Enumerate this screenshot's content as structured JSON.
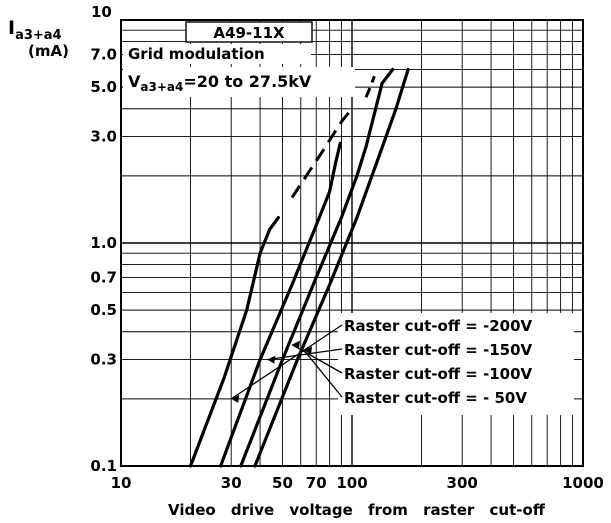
{
  "chart_data": {
    "type": "line",
    "x_scale": "log",
    "y_scale": "log",
    "xlim": [
      10,
      1000
    ],
    "ylim": [
      0.1,
      10
    ],
    "grid": true,
    "ylabel": "I",
    "ylabel_sub": "a3+a4",
    "yunit": "(mA)",
    "xlabel": "Video drive voltage from raster cut-off",
    "x_ticks": [
      {
        "value": 10,
        "label": "10"
      },
      {
        "value": 30,
        "label": "30"
      },
      {
        "value": 50,
        "label": "50"
      },
      {
        "value": 70,
        "label": "70"
      },
      {
        "value": 100,
        "label": "100"
      },
      {
        "value": 300,
        "label": "300"
      },
      {
        "value": 1000,
        "label": "1000"
      }
    ],
    "y_ticks": [
      {
        "value": 0.1,
        "label": "0.1"
      },
      {
        "value": 0.3,
        "label": "0.3"
      },
      {
        "value": 0.5,
        "label": "0.5"
      },
      {
        "value": 0.7,
        "label": "0.7"
      },
      {
        "value": 1.0,
        "label": "1.0"
      },
      {
        "value": 3.0,
        "label": "3.0"
      },
      {
        "value": 5.0,
        "label": "5.0"
      },
      {
        "value": 7.0,
        "label": "7.0"
      },
      {
        "value": 10,
        "label": "10"
      }
    ],
    "info_box": {
      "line1": "A49-11X",
      "line2": "Grid modulation",
      "line3_prefix": "V",
      "line3_sub": "a3+a4",
      "line3_suffix": "=20 to 27.5kV"
    },
    "series": [
      {
        "name": "Raster cut-off = -200V",
        "x": [
          20,
          28,
          35,
          40,
          44,
          48
        ],
        "y": [
          0.1,
          0.25,
          0.5,
          0.9,
          1.15,
          1.3
        ]
      },
      {
        "name": "Raster cut-off = -150V",
        "x": [
          27,
          40,
          55,
          70,
          80,
          85,
          89
        ],
        "y": [
          0.1,
          0.3,
          0.65,
          1.2,
          1.7,
          2.3,
          2.8
        ]
      },
      {
        "name": "Raster cut-off = -100V",
        "x": [
          33,
          50,
          70,
          90,
          105,
          115,
          125,
          135,
          150
        ],
        "y": [
          0.1,
          0.3,
          0.7,
          1.3,
          2.0,
          2.7,
          3.8,
          5.2,
          6.0
        ]
      },
      {
        "name": "Raster cut-off = - 50V",
        "x": [
          38,
          58,
          80,
          105,
          130,
          155,
          175
        ],
        "y": [
          0.1,
          0.3,
          0.65,
          1.3,
          2.4,
          4.0,
          6.0
        ]
      }
    ],
    "dashed_extension": {
      "x": [
        55,
        75,
        90,
        100
      ],
      "y": [
        1.6,
        2.6,
        3.5,
        4.0
      ]
    },
    "dashed_extension_b": {
      "x": [
        115,
        120,
        125
      ],
      "y": [
        4.5,
        5.0,
        5.6
      ]
    },
    "legend": [
      "Raster cut-off = -200V",
      "Raster cut-off = -150V",
      "Raster cut-off = -100V",
      "Raster cut-off = - 50V"
    ]
  }
}
